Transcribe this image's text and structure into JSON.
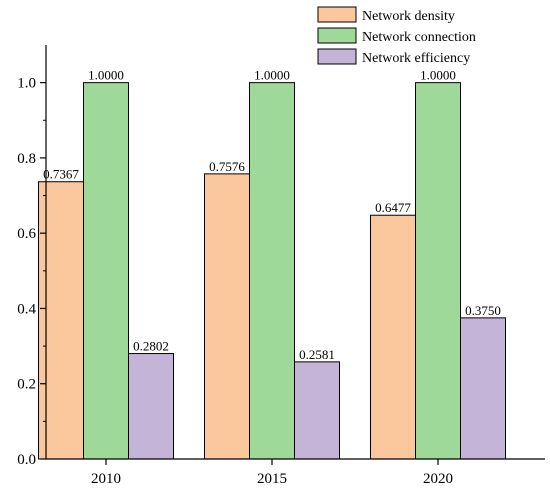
{
  "chart_data": {
    "type": "bar",
    "categories": [
      "2010",
      "2015",
      "2020"
    ],
    "series": [
      {
        "name": "Network density",
        "values": [
          0.7367,
          0.7576,
          0.6477
        ],
        "labels": [
          "0.7367",
          "0.7576",
          "0.6477"
        ],
        "color": "#FBC79C"
      },
      {
        "name": "Network connection",
        "values": [
          1.0,
          1.0,
          1.0
        ],
        "labels": [
          "1.0000",
          "1.0000",
          "1.0000"
        ],
        "color": "#9FD99A"
      },
      {
        "name": "Network efficiency",
        "values": [
          0.2802,
          0.2581,
          0.375
        ],
        "labels": [
          "0.2802",
          "0.2581",
          "0.3750"
        ],
        "color": "#C3B4D8"
      }
    ],
    "ylim": [
      0,
      1.1
    ],
    "yticks": [
      "0.0",
      "0.2",
      "0.4",
      "0.6",
      "0.8",
      "1.0"
    ],
    "ytick_values": [
      0,
      0.2,
      0.4,
      0.6,
      0.8,
      1.0
    ],
    "legend": "top-right",
    "grid": false,
    "title": "",
    "xlabel": "",
    "ylabel": ""
  }
}
